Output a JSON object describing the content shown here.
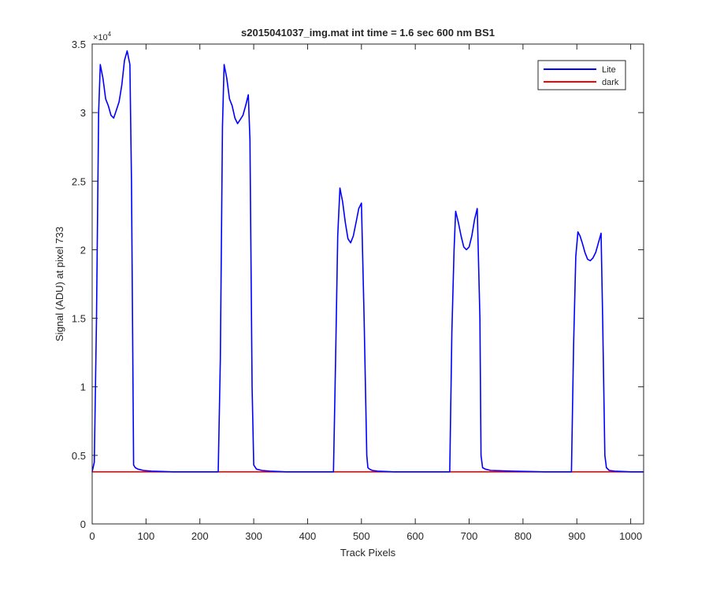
{
  "chart_data": {
    "type": "line",
    "title": "s2015041037_img.mat int time = 1.6 sec  600 nm BS1",
    "xlabel": "Track Pixels",
    "ylabel": "Signal (ADU) at pixel 733",
    "y_exponent_label": "×10",
    "y_exponent_power": "4",
    "xlim": [
      0,
      1024
    ],
    "ylim": [
      0,
      3.5
    ],
    "y_scale_factor": 10000,
    "xticks": [
      0,
      100,
      200,
      300,
      400,
      500,
      600,
      700,
      800,
      900,
      1000
    ],
    "xtick_labels": [
      "0",
      "100",
      "200",
      "300",
      "400",
      "500",
      "600",
      "700",
      "800",
      "900",
      "1000"
    ],
    "yticks": [
      0,
      0.5,
      1,
      1.5,
      2,
      2.5,
      3,
      3.5
    ],
    "ytick_labels": [
      "0",
      "0.5",
      "1",
      "1.5",
      "2",
      "2.5",
      "3",
      "3.5"
    ],
    "grid": false,
    "legend_position": "top-right",
    "series": [
      {
        "name": "Lite",
        "color": "#0000ff",
        "x": [
          0,
          4,
          8,
          12,
          15,
          20,
          25,
          30,
          35,
          40,
          45,
          50,
          55,
          60,
          65,
          70,
          73,
          77,
          80,
          85,
          95,
          110,
          150,
          200,
          234,
          238,
          242,
          245,
          250,
          255,
          260,
          265,
          270,
          275,
          280,
          285,
          290,
          293,
          297,
          300,
          305,
          315,
          330,
          360,
          400,
          448,
          452,
          456,
          460,
          465,
          470,
          475,
          480,
          485,
          490,
          495,
          500,
          505,
          510,
          512,
          515,
          520,
          530,
          560,
          600,
          664,
          668,
          672,
          675,
          680,
          685,
          690,
          695,
          700,
          705,
          710,
          715,
          720,
          722,
          725,
          730,
          740,
          780,
          840,
          886,
          890,
          894,
          898,
          902,
          906,
          910,
          915,
          920,
          925,
          930,
          935,
          940,
          945,
          948,
          952,
          955,
          960,
          970,
          1000,
          1024
        ],
        "values": [
          0.38,
          0.45,
          1.5,
          3.0,
          3.35,
          3.25,
          3.1,
          3.05,
          2.98,
          2.96,
          3.02,
          3.08,
          3.2,
          3.38,
          3.45,
          3.35,
          2.5,
          0.43,
          0.41,
          0.4,
          0.39,
          0.385,
          0.38,
          0.38,
          0.38,
          1.2,
          2.9,
          3.35,
          3.25,
          3.1,
          3.05,
          2.96,
          2.92,
          2.95,
          2.98,
          3.05,
          3.13,
          2.8,
          1.0,
          0.43,
          0.4,
          0.39,
          0.385,
          0.38,
          0.38,
          0.38,
          1.2,
          2.1,
          2.45,
          2.35,
          2.2,
          2.08,
          2.05,
          2.1,
          2.2,
          2.3,
          2.34,
          1.5,
          0.5,
          0.41,
          0.4,
          0.39,
          0.385,
          0.38,
          0.38,
          0.38,
          1.4,
          2.0,
          2.28,
          2.2,
          2.1,
          2.02,
          2.0,
          2.02,
          2.1,
          2.22,
          2.3,
          1.5,
          0.5,
          0.41,
          0.4,
          0.39,
          0.385,
          0.38,
          0.38,
          0.38,
          1.3,
          1.95,
          2.13,
          2.1,
          2.05,
          1.98,
          1.93,
          1.92,
          1.94,
          1.98,
          2.05,
          2.12,
          1.5,
          0.5,
          0.41,
          0.39,
          0.385,
          0.38,
          0.38
        ]
      },
      {
        "name": "dark",
        "color": "#ff0000",
        "x": [
          0,
          1024
        ],
        "values": [
          0.38,
          0.38
        ]
      }
    ]
  }
}
